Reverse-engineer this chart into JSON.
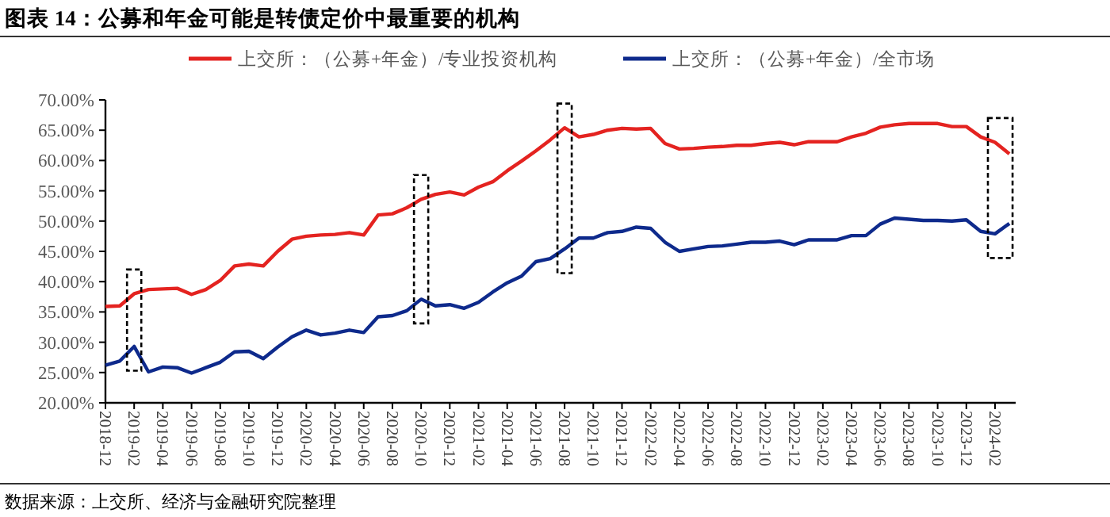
{
  "chart_data": {
    "type": "line",
    "title": "图表 14：公募和年金可能是转债定价中最重要的机构",
    "annotations": [
      "数据来源：上交所、经济与金融研究院整理"
    ],
    "categories": [
      "2018-12",
      null,
      "2019-02",
      null,
      "2019-04",
      null,
      "2019-06",
      null,
      "2019-08",
      null,
      "2019-10",
      null,
      "2019-12",
      null,
      "2020-02",
      null,
      "2020-04",
      null,
      "2020-06",
      null,
      "2020-08",
      null,
      "2020-10",
      null,
      "2020-12",
      null,
      "2021-02",
      null,
      "2021-04",
      null,
      "2021-06",
      null,
      "2021-08",
      null,
      "2021-10",
      null,
      "2021-12",
      null,
      "2022-02",
      null,
      "2022-04",
      null,
      "2022-06",
      null,
      "2022-08",
      null,
      "2022-10",
      null,
      "2022-12",
      null,
      "2023-02",
      null,
      "2023-04",
      null,
      "2023-06",
      null,
      "2023-08",
      null,
      "2023-10",
      null,
      "2023-12",
      null,
      "2024-02",
      null
    ],
    "series": [
      {
        "name": "上交所：（公募+年金）/专业投资机构",
        "color": "#e42320",
        "values": [
          35.9,
          36.0,
          38.0,
          38.7,
          38.8,
          38.9,
          37.9,
          38.7,
          40.2,
          42.6,
          42.9,
          42.6,
          45.0,
          47.0,
          47.5,
          47.7,
          47.8,
          48.1,
          47.7,
          51.0,
          51.2,
          52.2,
          53.6,
          54.4,
          54.8,
          54.3,
          55.6,
          56.5,
          58.3,
          59.9,
          61.6,
          63.4,
          65.4,
          63.9,
          64.3,
          65.0,
          65.3,
          65.2,
          65.3,
          62.8,
          61.9,
          62.0,
          62.2,
          62.3,
          62.5,
          62.5,
          62.8,
          63.0,
          62.6,
          63.1,
          63.1,
          63.1,
          63.9,
          64.5,
          65.5,
          65.9,
          66.1,
          66.1,
          66.1,
          65.6,
          65.6,
          63.9,
          63.0,
          61.1
        ]
      },
      {
        "name": "上交所：（公募+年金）/全市场",
        "color": "#0e2a8c",
        "values": [
          26.2,
          26.9,
          29.3,
          25.1,
          25.9,
          25.8,
          24.9,
          25.8,
          26.7,
          28.4,
          28.5,
          27.3,
          29.2,
          30.9,
          32.0,
          31.2,
          31.5,
          32.0,
          31.6,
          34.2,
          34.4,
          35.2,
          37.1,
          36.0,
          36.2,
          35.6,
          36.6,
          38.3,
          39.8,
          40.9,
          43.3,
          43.8,
          45.4,
          47.2,
          47.2,
          48.1,
          48.3,
          49.0,
          48.8,
          46.5,
          45.0,
          45.4,
          45.8,
          45.9,
          46.2,
          46.5,
          46.5,
          46.7,
          46.1,
          46.9,
          46.9,
          46.9,
          47.6,
          47.6,
          49.5,
          50.5,
          50.3,
          50.1,
          50.1,
          50.0,
          50.2,
          48.3,
          47.9,
          49.6
        ]
      }
    ],
    "ylim": [
      20,
      70
    ],
    "yticks": [
      {
        "value": 20,
        "label": "20.00%"
      },
      {
        "value": 25,
        "label": "25.00%"
      },
      {
        "value": 30,
        "label": "30.00%"
      },
      {
        "value": 35,
        "label": "35.00%"
      },
      {
        "value": 40,
        "label": "40.00%"
      },
      {
        "value": 45,
        "label": "45.00%"
      },
      {
        "value": 50,
        "label": "50.00%"
      },
      {
        "value": 55,
        "label": "55.00%"
      },
      {
        "value": 60,
        "label": "60.00%"
      },
      {
        "value": 65,
        "label": "65.00%"
      },
      {
        "value": 70,
        "label": "70.00%"
      }
    ],
    "legend": "top",
    "grid": false
  }
}
